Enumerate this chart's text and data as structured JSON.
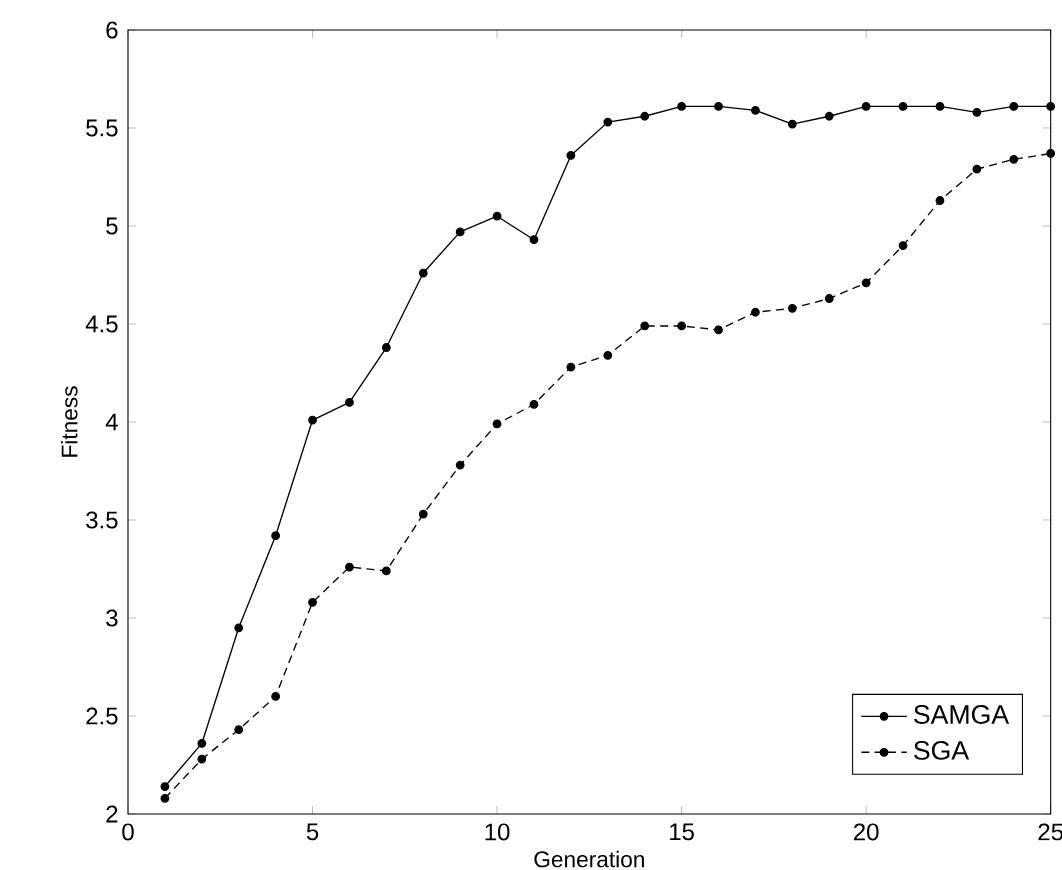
{
  "chart_data": {
    "type": "line",
    "xlabel": "Generation",
    "ylabel": "Fitness",
    "x": [
      1,
      2,
      3,
      4,
      5,
      6,
      7,
      8,
      9,
      10,
      11,
      12,
      13,
      14,
      15,
      16,
      17,
      18,
      19,
      20,
      21,
      22,
      23,
      24,
      25
    ],
    "series": [
      {
        "name": "SAMGA",
        "color": "#000000",
        "line_style": "solid",
        "values": [
          2.14,
          2.36,
          2.95,
          3.42,
          4.01,
          4.1,
          4.38,
          4.76,
          4.97,
          5.05,
          4.93,
          5.36,
          5.53,
          5.56,
          5.61,
          5.61,
          5.59,
          5.52,
          5.56,
          5.61,
          5.61,
          5.61,
          5.58,
          5.61,
          5.61
        ]
      },
      {
        "name": "SGA",
        "color": "#000000",
        "line_style": "dashed",
        "values": [
          2.08,
          2.28,
          2.43,
          2.6,
          3.08,
          3.26,
          3.24,
          3.53,
          3.78,
          3.99,
          4.09,
          4.28,
          4.34,
          4.49,
          4.49,
          4.47,
          4.56,
          4.58,
          4.63,
          4.71,
          4.9,
          5.13,
          5.29,
          5.34,
          5.37
        ]
      }
    ],
    "xlim": [
      0,
      25
    ],
    "ylim": [
      2,
      6
    ],
    "xticks": [
      0,
      5,
      10,
      15,
      20,
      25
    ],
    "yticks": [
      2,
      2.5,
      3,
      3.5,
      4,
      4.5,
      5,
      5.5,
      6
    ],
    "grid": false,
    "legend": "bottom right",
    "marker": "circle"
  }
}
